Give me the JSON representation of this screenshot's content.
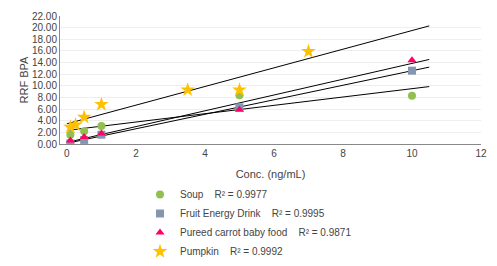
{
  "chart_data": {
    "type": "scatter",
    "xlabel": "Conc. (ng/mL)",
    "ylabel": "RRF BPA",
    "xlim": [
      -0.2,
      12
    ],
    "ylim": [
      0.0,
      22.0
    ],
    "xticks": [
      0,
      2,
      4,
      6,
      8,
      10,
      12
    ],
    "yticks": [
      {
        "value": 0.0,
        "label": "0.00"
      },
      {
        "value": 2.0,
        "label": "2.00"
      },
      {
        "value": 4.0,
        "label": "4.00"
      },
      {
        "value": 6.0,
        "label": "6.00"
      },
      {
        "value": 8.0,
        "label": "8.00"
      },
      {
        "value": 10.0,
        "label": "10.00"
      },
      {
        "value": 12.0,
        "label": "12.00"
      },
      {
        "value": 14.0,
        "label": "14.00"
      },
      {
        "value": 16.0,
        "label": "16.00"
      },
      {
        "value": 18.0,
        "label": "18.00"
      },
      {
        "value": 20.0,
        "label": "20.00"
      },
      {
        "value": 22.0,
        "label": "22.00"
      }
    ],
    "grid": "y",
    "legend": "bottom",
    "series": [
      {
        "name": "Soup    R² = 0.9977",
        "color": "#92C050",
        "marker": "circle",
        "x": [
          0.1,
          0.5,
          1.0,
          5.0,
          10.0
        ],
        "values": [
          1.6,
          2.2,
          3.1,
          8.4,
          8.3
        ],
        "trendline": {
          "x": [
            0,
            10.5
          ],
          "values": [
            2.3398,
            9.8675
          ]
        }
      },
      {
        "name": "Fruit Energy Drink    R² = 0.9995",
        "color": "#8496B0",
        "marker": "square",
        "x": [
          0.1,
          0.5,
          1.0,
          5.0,
          10.0
        ],
        "values": [
          0.1,
          0.7,
          1.6,
          6.3,
          12.6
        ],
        "trendline": {
          "x": [
            0,
            10.5
          ],
          "values": [
            0.1189,
            13.2157
          ]
        }
      },
      {
        "name": "Pureed carrot baby food    R² = 0.9871",
        "color": "#FF0066",
        "marker": "triangle-up",
        "x": [
          0.1,
          0.5,
          1.0,
          5.0,
          10.0
        ],
        "values": [
          0.6,
          1.2,
          1.8,
          5.9,
          14.4
        ],
        "trendline": {
          "x": [
            0,
            10.5
          ],
          "values": [
            0.2718,
            14.5297
          ]
        }
      },
      {
        "name": "Pumpkin    R² = 0.9992",
        "color": "#FFC000",
        "marker": "star",
        "x": [
          0.1,
          0.25,
          0.5,
          1.0,
          3.5,
          5.0,
          7.0
        ],
        "values": [
          2.9,
          3.3,
          4.6,
          6.8,
          9.3,
          9.3,
          15.9
        ],
        "trendline": {
          "x": [
            0,
            10.5
          ],
          "values": [
            3.4704,
            20.2988
          ]
        }
      }
    ]
  }
}
